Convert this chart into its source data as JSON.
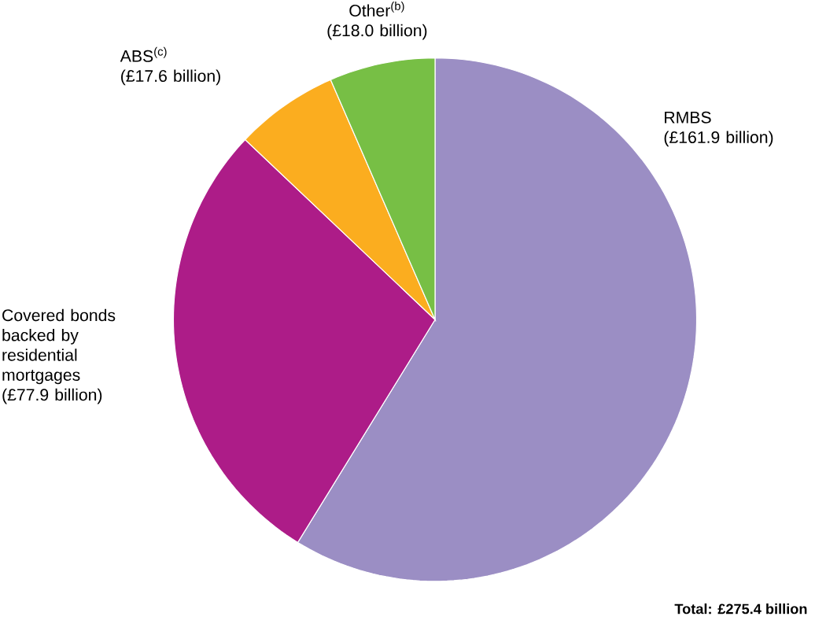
{
  "chart_data": {
    "type": "pie",
    "categories": [
      "RMBS",
      "Covered bonds backed by residential mortgages",
      "ABS$^{(c)}$",
      "Other$^{(b)}$"
    ],
    "values": [
      161.9,
      77.9,
      17.6,
      18.0
    ],
    "colors": [
      "#9b8ec4",
      "#ad1c88",
      "#fbad1f",
      "#77bf45"
    ],
    "value_labels": [
      "(£161.9 billion)",
      "(£77.9 billion)",
      "(£17.6 billion)",
      "(£18.0 billion)"
    ],
    "annotations": [
      "Total:  £275.4 billion"
    ]
  }
}
